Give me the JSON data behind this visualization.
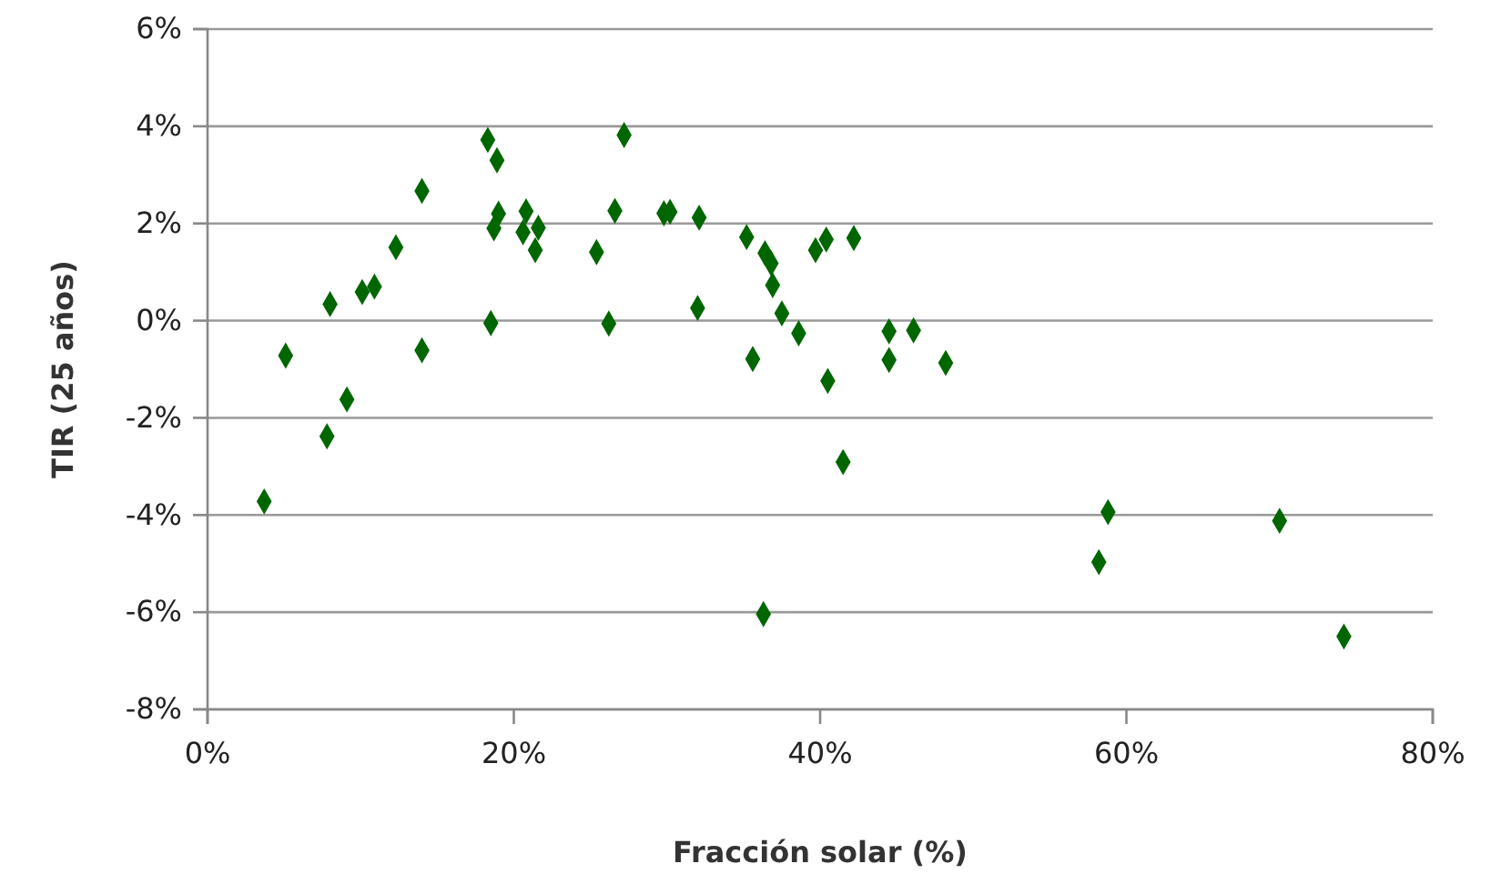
{
  "chart_data": {
    "type": "scatter",
    "xlabel": "Fracción solar (%)",
    "ylabel": "TIR (25 años)",
    "x": [
      3.7,
      5.1,
      8.0,
      7.8,
      9.1,
      10.1,
      10.9,
      12.3,
      14.0,
      14.0,
      18.3,
      18.9,
      18.5,
      18.7,
      19.0,
      20.8,
      20.6,
      21.6,
      21.4,
      25.4,
      26.6,
      26.2,
      27.2,
      29.8,
      30.2,
      32.1,
      32.0,
      35.2,
      36.4,
      36.8,
      36.9,
      37.5,
      38.6,
      35.6,
      40.5,
      39.7,
      40.4,
      42.2,
      44.5,
      46.1,
      44.5,
      48.2,
      41.5,
      36.3,
      58.8,
      58.2,
      70.0,
      74.2
    ],
    "series": [
      {
        "color": "#006600",
        "values": [
          -3.72,
          -0.72,
          0.34,
          -2.38,
          -1.62,
          0.59,
          0.7,
          1.51,
          2.67,
          -0.61,
          3.72,
          3.3,
          -0.05,
          1.9,
          2.2,
          2.25,
          1.82,
          1.91,
          1.45,
          1.41,
          2.26,
          -0.06,
          3.82,
          2.21,
          2.24,
          2.12,
          0.26,
          1.72,
          1.39,
          1.18,
          0.73,
          0.15,
          -0.26,
          -0.79,
          -1.24,
          1.45,
          1.67,
          1.7,
          -0.22,
          -0.2,
          -0.81,
          -0.87,
          -2.91,
          -6.04,
          -3.94,
          -4.97,
          -4.12,
          -6.5
        ]
      }
    ],
    "xlim": [
      0,
      80
    ],
    "xticks": [
      {
        "value": 0,
        "label": "0%"
      },
      {
        "value": 20,
        "label": "20%"
      },
      {
        "value": 40,
        "label": "40%"
      },
      {
        "value": 60,
        "label": "60%"
      },
      {
        "value": 80,
        "label": "80%"
      }
    ],
    "ylim": [
      -8,
      6
    ],
    "yticks": [
      {
        "value": -8,
        "label": "-8%"
      },
      {
        "value": -6,
        "label": "-6%"
      },
      {
        "value": -4,
        "label": "-4%"
      },
      {
        "value": -2,
        "label": "-2%"
      },
      {
        "value": 0,
        "label": "0%"
      },
      {
        "value": 2,
        "label": "2%"
      },
      {
        "value": 4,
        "label": "4%"
      },
      {
        "value": 6,
        "label": "6%"
      }
    ],
    "grid": "y",
    "marker": "diamond"
  }
}
